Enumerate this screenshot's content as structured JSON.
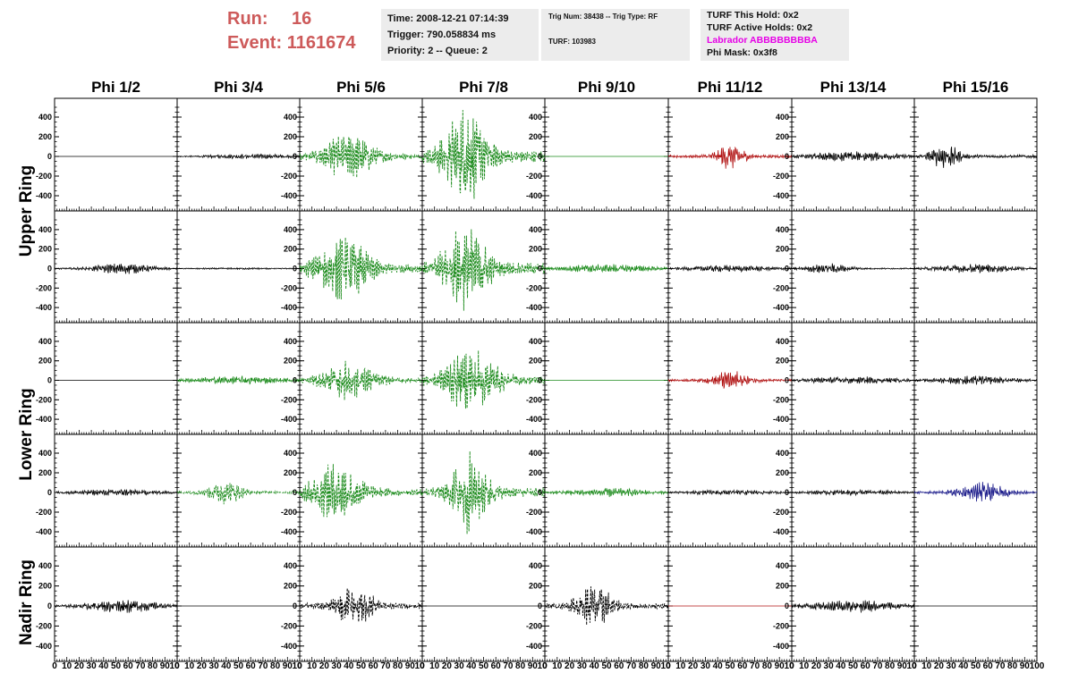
{
  "header": {
    "run_label": "Run:",
    "run_value": "16",
    "event_label": "Event:",
    "event_value": "1161674",
    "time": "Time: 2008-12-21 07:14:39",
    "trigger": "Trigger: 790.058834 ms",
    "priority": "Priority: 2 -- Queue: 2",
    "trig_num": "Trig Num: 38438 -- Trig Type: RF",
    "turf": "TURF: 103983",
    "turf_this_hold": "TURF This Hold: 0x2",
    "turf_active_holds": "TURF Active Holds: 0x2",
    "labrador": "Labrador ABBBBBBBBA",
    "phi_mask": "Phi Mask: 0x3f8"
  },
  "columns": [
    "Phi 1/2",
    "Phi 3/4",
    "Phi 5/6",
    "Phi 7/8",
    "Phi 9/10",
    "Phi 11/12",
    "Phi 13/14",
    "Phi 15/16"
  ],
  "ring_labels": [
    "Upper Ring",
    "Lower Ring",
    "Nadir Ring"
  ],
  "colors": {
    "header_red": "#cd5a5a",
    "magenta": "#e600e6",
    "black": "#000000",
    "green": "#1a8a1a",
    "red": "#b01010",
    "blue": "#1a1a8a",
    "panel_bg": "#ececec"
  },
  "chart_data": {
    "type": "line",
    "y_ticks": [
      400,
      200,
      0,
      -200,
      -400
    ],
    "x_ticks": [
      0,
      10,
      20,
      30,
      40,
      50,
      60,
      70,
      80,
      90,
      100
    ],
    "xlim": [
      0,
      100
    ],
    "ylim": [
      -500,
      500
    ],
    "panel_rows": [
      [
        {
          "color": "black",
          "style": "solid",
          "amp": 0,
          "center": 50,
          "width": 50
        },
        {
          "color": "black",
          "style": "solid",
          "amp": 22,
          "center": 60,
          "width": 40
        },
        {
          "color": "green",
          "style": "dashed",
          "amp": 200,
          "center": 40,
          "width": 22
        },
        {
          "color": "green",
          "style": "dashed",
          "amp": 420,
          "center": 35,
          "width": 18
        },
        {
          "color": "green",
          "style": "solid",
          "amp": 0,
          "center": 50,
          "width": 50
        },
        {
          "color": "red",
          "style": "solid",
          "amp": 110,
          "center": 50,
          "width": 12
        },
        {
          "color": "black",
          "style": "solid",
          "amp": 45,
          "center": 50,
          "width": 40
        },
        {
          "color": "black",
          "style": "solid",
          "amp": 110,
          "center": 25,
          "width": 12
        }
      ],
      [
        {
          "color": "black",
          "style": "solid",
          "amp": 50,
          "center": 55,
          "width": 25
        },
        {
          "color": "black",
          "style": "solid",
          "amp": 8,
          "center": 50,
          "width": 50
        },
        {
          "color": "green",
          "style": "dashed",
          "amp": 300,
          "center": 35,
          "width": 22
        },
        {
          "color": "green",
          "style": "dashed",
          "amp": 400,
          "center": 35,
          "width": 18
        },
        {
          "color": "green",
          "style": "solid",
          "amp": 40,
          "center": 50,
          "width": 40
        },
        {
          "color": "black",
          "style": "solid",
          "amp": 30,
          "center": 50,
          "width": 40
        },
        {
          "color": "black",
          "style": "solid",
          "amp": 45,
          "center": 30,
          "width": 20
        },
        {
          "color": "black",
          "style": "solid",
          "amp": 40,
          "center": 50,
          "width": 35
        }
      ],
      [
        {
          "color": "black",
          "style": "solid",
          "amp": 0,
          "center": 50,
          "width": 50
        },
        {
          "color": "green",
          "style": "solid",
          "amp": 40,
          "center": 50,
          "width": 40
        },
        {
          "color": "green",
          "style": "dashed",
          "amp": 170,
          "center": 40,
          "width": 22
        },
        {
          "color": "green",
          "style": "dashed",
          "amp": 290,
          "center": 40,
          "width": 22
        },
        {
          "color": "green",
          "style": "solid",
          "amp": 0,
          "center": 50,
          "width": 50
        },
        {
          "color": "red",
          "style": "solid",
          "amp": 90,
          "center": 50,
          "width": 15
        },
        {
          "color": "black",
          "style": "solid",
          "amp": 35,
          "center": 50,
          "width": 40
        },
        {
          "color": "black",
          "style": "solid",
          "amp": 40,
          "center": 50,
          "width": 35
        }
      ],
      [
        {
          "color": "black",
          "style": "solid",
          "amp": 30,
          "center": 50,
          "width": 40
        },
        {
          "color": "green",
          "style": "dashed",
          "amp": 100,
          "center": 40,
          "width": 15
        },
        {
          "color": "green",
          "style": "dashed",
          "amp": 250,
          "center": 30,
          "width": 22
        },
        {
          "color": "green",
          "style": "dashed",
          "amp": 360,
          "center": 38,
          "width": 15
        },
        {
          "color": "green",
          "style": "solid",
          "amp": 40,
          "center": 50,
          "width": 40
        },
        {
          "color": "black",
          "style": "solid",
          "amp": 25,
          "center": 50,
          "width": 40
        },
        {
          "color": "black",
          "style": "solid",
          "amp": 25,
          "center": 50,
          "width": 40
        },
        {
          "color": "blue",
          "style": "solid",
          "amp": 90,
          "center": 55,
          "width": 20
        }
      ],
      [
        {
          "color": "black",
          "style": "solid",
          "amp": 60,
          "center": 55,
          "width": 30
        },
        {
          "color": "black",
          "style": "solid",
          "amp": 0,
          "center": 50,
          "width": 50
        },
        {
          "color": "black",
          "style": "dashed",
          "amp": 200,
          "center": 45,
          "width": 15
        },
        {
          "color": "black",
          "style": "solid",
          "amp": 0,
          "center": 50,
          "width": 50
        },
        {
          "color": "black",
          "style": "dashed",
          "amp": 190,
          "center": 40,
          "width": 15
        },
        {
          "color": "red",
          "style": "solid",
          "amp": 0,
          "center": 50,
          "width": 50
        },
        {
          "color": "black",
          "style": "solid",
          "amp": 55,
          "center": 50,
          "width": 40
        },
        {
          "color": "black",
          "style": "solid",
          "amp": 0,
          "center": 50,
          "width": 50
        }
      ]
    ]
  }
}
